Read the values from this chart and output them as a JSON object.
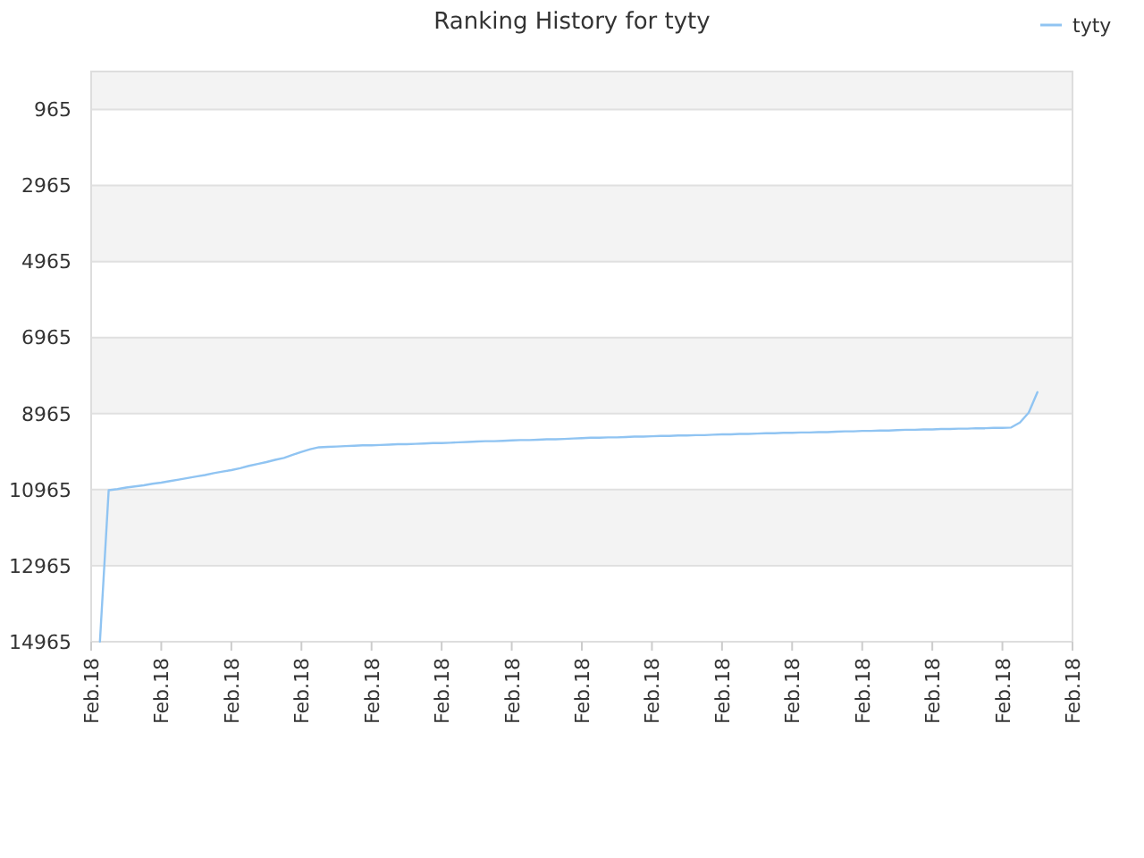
{
  "chart_data": {
    "type": "line",
    "title": "Ranking History for tyty",
    "categories": [
      "Feb.18",
      null,
      null,
      null,
      null,
      null,
      null,
      null,
      "Feb.18",
      null,
      null,
      null,
      null,
      null,
      null,
      null,
      "Feb.18",
      null,
      null,
      null,
      null,
      null,
      null,
      null,
      "Feb.18",
      null,
      null,
      null,
      null,
      null,
      null,
      null,
      "Feb.18",
      null,
      null,
      null,
      null,
      null,
      null,
      null,
      "Feb.18",
      null,
      null,
      null,
      null,
      null,
      null,
      null,
      "Feb.18",
      null,
      null,
      null,
      null,
      null,
      null,
      null,
      "Feb.18",
      null,
      null,
      null,
      null,
      null,
      null,
      null,
      "Feb.18",
      null,
      null,
      null,
      null,
      null,
      null,
      null,
      "Feb.18",
      null,
      null,
      null,
      null,
      null,
      null,
      null,
      "Feb.18",
      null,
      null,
      null,
      null,
      null,
      null,
      null,
      "Feb.18",
      null,
      null,
      null,
      null,
      null,
      null,
      null,
      "Feb.18",
      null,
      null,
      null,
      null,
      null,
      null,
      null,
      "Feb.18",
      null,
      null,
      null,
      null,
      null,
      null,
      null,
      "Feb.18"
    ],
    "series": [
      {
        "name": "tyty",
        "color": "#90c4f2",
        "values": [
          null,
          14965,
          10980,
          10950,
          10910,
          10880,
          10850,
          10810,
          10780,
          10740,
          10700,
          10660,
          10620,
          10580,
          10530,
          10490,
          10450,
          10400,
          10340,
          10290,
          10240,
          10180,
          10130,
          10050,
          9970,
          9900,
          9850,
          9840,
          9830,
          9820,
          9810,
          9800,
          9800,
          9790,
          9780,
          9770,
          9770,
          9760,
          9750,
          9740,
          9740,
          9730,
          9720,
          9710,
          9700,
          9690,
          9690,
          9680,
          9670,
          9660,
          9660,
          9650,
          9640,
          9640,
          9630,
          9620,
          9610,
          9600,
          9600,
          9590,
          9590,
          9580,
          9570,
          9570,
          9560,
          9550,
          9550,
          9540,
          9540,
          9530,
          9530,
          9520,
          9510,
          9510,
          9500,
          9500,
          9490,
          9480,
          9480,
          9470,
          9470,
          9460,
          9460,
          9450,
          9450,
          9440,
          9430,
          9430,
          9420,
          9420,
          9410,
          9410,
          9400,
          9390,
          9390,
          9380,
          9380,
          9370,
          9370,
          9360,
          9360,
          9350,
          9350,
          9340,
          9340,
          9330,
          9200,
          8940,
          8400,
          null,
          null,
          null,
          null
        ]
      }
    ],
    "ylim": [
      14965,
      -35
    ],
    "yticks": [
      965,
      2965,
      4965,
      6965,
      8965,
      10965,
      12965,
      14965
    ],
    "grid": "y",
    "legend": "top right",
    "marker": "none",
    "line_style": "solid"
  }
}
